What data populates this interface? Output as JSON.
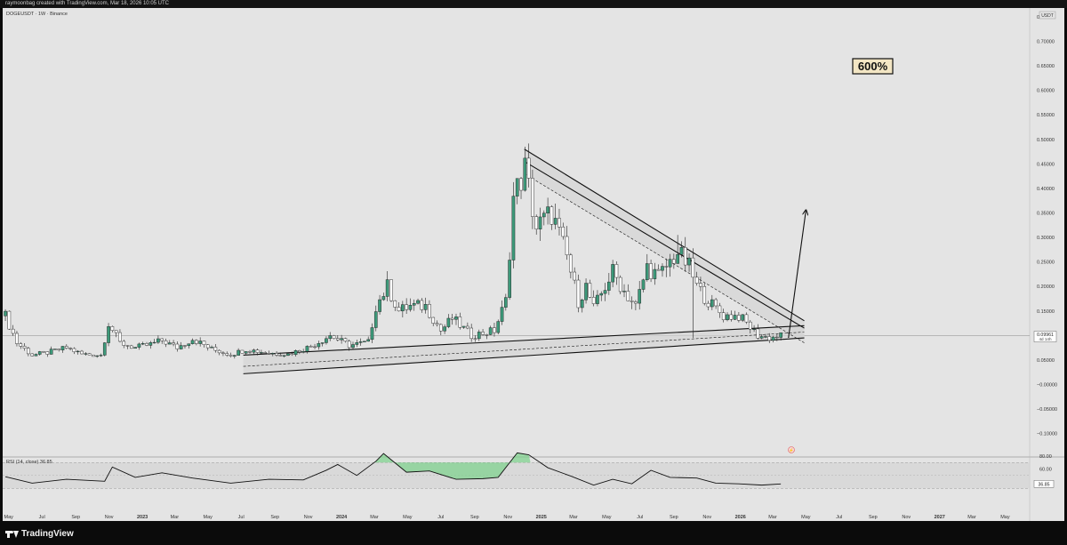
{
  "header": {
    "credit": "raymoonbag created with TradingView.com, Mar 18, 2026 10:05 UTC"
  },
  "chart_header": {
    "symbol": "DOGEUSDT · 1W · Binance",
    "currency": "USDT"
  },
  "annotation": {
    "label": "600%"
  },
  "footer": {
    "brand": "TradingView"
  },
  "colors": {
    "up": "#3d9a7a",
    "down": "#ffffff",
    "background": "#e4e4e4",
    "line": "#111111",
    "rsi_overbought_fill": "#7ad28a"
  },
  "chart_data": [
    {
      "type": "candlestick",
      "title": "DOGEUSDT · 1W · Binance",
      "y_axis": {
        "label": "USDT",
        "ticks": [
          "0.75000",
          "0.70000",
          "0.65000",
          "0.60000",
          "0.55000",
          "0.50000",
          "0.45000",
          "0.40000",
          "0.35000",
          "0.30000",
          "0.25000",
          "0.20000",
          "0.15000",
          "0.10000",
          "0.05000",
          "−0.00000",
          "−0.05000",
          "−0.10000"
        ],
        "range": [
          -0.105,
          0.79
        ]
      },
      "x_axis": {
        "ticks": [
          "May",
          "Jul",
          "Sep",
          "Nov",
          "2023",
          "Mar",
          "May",
          "Jul",
          "Sep",
          "Nov",
          "2024",
          "Mar",
          "May",
          "Jul",
          "Sep",
          "Nov",
          "2025",
          "Mar",
          "May",
          "Jul",
          "Sep",
          "Nov",
          "2026",
          "Mar",
          "May",
          "Jul",
          "Sep",
          "Nov",
          "2027",
          "Mar",
          "May"
        ],
        "range": [
          "2022-04-20",
          "2027-06-15"
        ]
      },
      "last_price": {
        "value": "0.09961",
        "countdown": "4d 14h"
      },
      "anchors": [
        [
          "2022-04-25",
          0.14
        ],
        [
          "2022-05-16",
          0.085
        ],
        [
          "2022-06-13",
          0.06
        ],
        [
          "2022-07-11",
          0.065
        ],
        [
          "2022-08-15",
          0.075
        ],
        [
          "2022-09-12",
          0.062
        ],
        [
          "2022-10-17",
          0.06
        ],
        [
          "2022-10-31",
          0.125
        ],
        [
          "2022-11-21",
          0.085
        ],
        [
          "2022-12-19",
          0.075
        ],
        [
          "2023-01-16",
          0.082
        ],
        [
          "2023-02-06",
          0.09
        ],
        [
          "2023-03-06",
          0.075
        ],
        [
          "2023-04-03",
          0.093
        ],
        [
          "2023-05-08",
          0.072
        ],
        [
          "2023-06-12",
          0.061
        ],
        [
          "2023-07-10",
          0.072
        ],
        [
          "2023-08-21",
          0.064
        ],
        [
          "2023-09-25",
          0.062
        ],
        [
          "2023-11-06",
          0.078
        ],
        [
          "2023-12-11",
          0.1
        ],
        [
          "2024-01-15",
          0.08
        ],
        [
          "2024-02-19",
          0.086
        ],
        [
          "2024-03-04",
          0.16
        ],
        [
          "2024-03-25",
          0.2
        ],
        [
          "2024-04-15",
          0.15
        ],
        [
          "2024-05-06",
          0.16
        ],
        [
          "2024-06-03",
          0.16
        ],
        [
          "2024-07-01",
          0.11
        ],
        [
          "2024-07-22",
          0.135
        ],
        [
          "2024-08-26",
          0.1
        ],
        [
          "2024-10-07",
          0.11
        ],
        [
          "2024-10-28",
          0.17
        ],
        [
          "2024-11-11",
          0.38
        ],
        [
          "2024-12-02",
          0.44
        ],
        [
          "2024-12-23",
          0.32
        ],
        [
          "2025-01-20",
          0.35
        ],
        [
          "2025-02-17",
          0.26
        ],
        [
          "2025-03-10",
          0.17
        ],
        [
          "2025-03-24",
          0.2
        ],
        [
          "2025-04-07",
          0.155
        ],
        [
          "2025-05-12",
          0.23
        ],
        [
          "2025-06-02",
          0.19
        ],
        [
          "2025-06-23",
          0.16
        ],
        [
          "2025-07-14",
          0.24
        ],
        [
          "2025-08-04",
          0.22
        ],
        [
          "2025-09-08",
          0.27
        ],
        [
          "2025-09-29",
          0.24
        ],
        [
          "2025-10-13",
          0.2
        ],
        [
          "2025-11-03",
          0.17
        ],
        [
          "2025-12-01",
          0.14
        ],
        [
          "2025-12-29",
          0.14
        ],
        [
          "2026-01-12",
          0.125
        ],
        [
          "2026-02-02",
          0.1
        ],
        [
          "2026-02-23",
          0.095
        ],
        [
          "2026-03-16",
          0.0996
        ]
      ],
      "key_candles": [
        {
          "date": "2024-12-02",
          "high": 0.485
        },
        {
          "date": "2025-09-08",
          "high": 0.305
        },
        {
          "date": "2025-10-06",
          "low": 0.095
        }
      ],
      "trendlines": [
        {
          "name": "wedge-upper-top",
          "from": [
            "2024-12-01",
            0.48
          ],
          "to": [
            "2026-04-28",
            0.13
          ]
        },
        {
          "name": "wedge-upper-mid",
          "from": [
            "2024-12-01",
            0.455
          ],
          "to": [
            "2026-04-28",
            0.115
          ]
        },
        {
          "name": "wedge-upper-bottom",
          "from": [
            "2024-12-01",
            0.43
          ],
          "to": [
            "2026-04-28",
            0.085
          ],
          "dashed": true
        },
        {
          "name": "wedge-lower-top",
          "from": [
            "2023-07-05",
            0.06
          ],
          "to": [
            "2026-04-28",
            0.12
          ]
        },
        {
          "name": "wedge-lower-bottom",
          "from": [
            "2023-07-05",
            0.022
          ],
          "to": [
            "2026-04-28",
            0.095
          ]
        },
        {
          "name": "wedge-lower-mid",
          "from": [
            "2023-07-05",
            0.037
          ],
          "to": [
            "2026-04-28",
            0.107
          ],
          "dashed": true
        }
      ],
      "projection_arrow": {
        "from": [
          "2026-03-30",
          0.095
        ],
        "to": [
          "2026-05-01",
          0.355
        ]
      },
      "target_label_position": "top-right"
    },
    {
      "type": "line",
      "title": "RSI (14, close)",
      "value": "36.85",
      "y_axis": {
        "ticks": [
          "80.00",
          "60.00",
          "40.00"
        ],
        "range": [
          28,
          86
        ],
        "band": [
          30,
          70
        ]
      },
      "x": [
        "2022-04-25",
        "2022-06-13",
        "2022-08-15",
        "2022-10-24",
        "2022-11-07",
        "2022-12-19",
        "2023-02-06",
        "2023-04-03",
        "2023-06-12",
        "2023-08-21",
        "2023-10-23",
        "2023-12-04",
        "2023-12-25",
        "2024-01-29",
        "2024-03-04",
        "2024-03-18",
        "2024-04-29",
        "2024-06-10",
        "2024-07-29",
        "2024-09-16",
        "2024-10-14",
        "2024-11-18",
        "2024-12-09",
        "2025-01-13",
        "2025-02-24",
        "2025-04-07",
        "2025-05-12",
        "2025-06-16",
        "2025-07-21",
        "2025-08-25",
        "2025-10-13",
        "2025-11-17",
        "2025-12-29",
        "2026-02-09",
        "2026-03-16"
      ],
      "values": [
        48,
        38,
        44,
        41,
        63,
        47,
        54,
        46,
        38,
        44,
        43,
        58,
        67,
        50,
        72,
        84,
        55,
        57,
        44,
        45,
        47,
        85,
        82,
        62,
        49,
        35,
        44,
        37,
        58,
        47,
        46,
        38,
        37,
        35,
        36.85
      ]
    }
  ]
}
